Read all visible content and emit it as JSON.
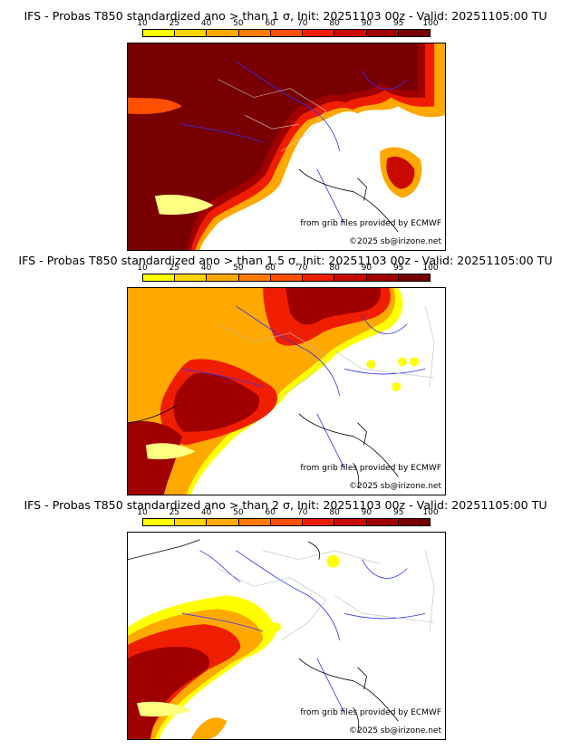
{
  "panels": [
    {
      "title": "IFS - Probas T850  standardized ano > than 1 σ, Init: 20251103 00z - Valid: 20251105:00 TU",
      "credit_source": "from grib files provided by ECMWF",
      "credit_copyright": "©2025 sb@irizone.net"
    },
    {
      "title": "IFS - Probas T850  standardized ano > than 1.5 σ, Init: 20251103 00z - Valid: 20251105:00 TU",
      "credit_source": "from grib files provided by ECMWF",
      "credit_copyright": "©2025 sb@irizone.net"
    },
    {
      "title": "IFS - Probas T850  standardized ano > than 2 σ, Init: 20251103 00z - Valid: 20251105:00 TU",
      "credit_source": "from grib files provided by ECMWF",
      "credit_copyright": "©2025 sb@irizone.net"
    }
  ],
  "colorbar": {
    "ticks": [
      "10",
      "25",
      "40",
      "50",
      "60",
      "70",
      "80",
      "90",
      "95",
      "100"
    ],
    "colors": [
      "#ffff00",
      "#ffd400",
      "#ffa800",
      "#ff7c00",
      "#ff5000",
      "#f01e00",
      "#c80a00",
      "#a00000",
      "#780000"
    ]
  }
}
